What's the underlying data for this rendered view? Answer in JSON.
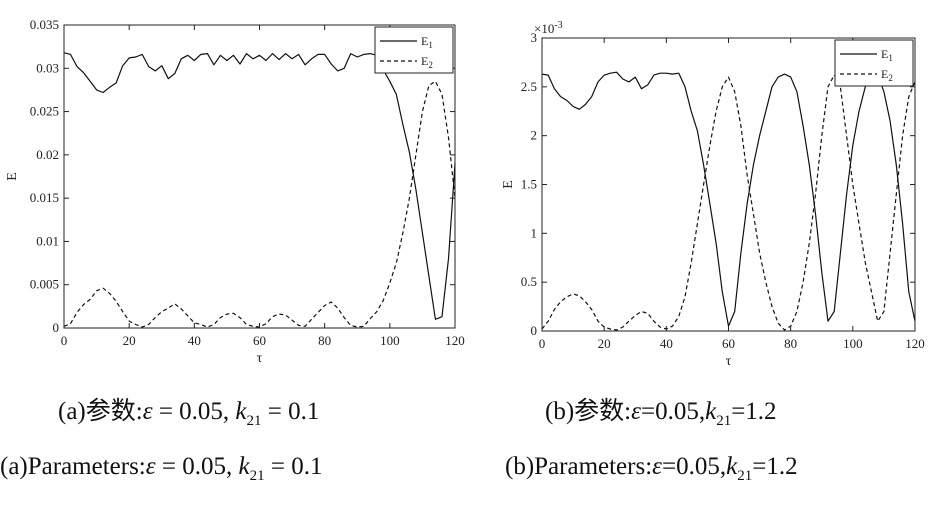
{
  "figure": {
    "captions": [
      {
        "label": "(a)参数:ε = 0.05, k21 = 0.1",
        "parts": [
          "(a)参数:",
          "ε",
          " = 0.05, ",
          "k",
          "21",
          " = 0.1"
        ]
      },
      {
        "label": "(b)参数:ε=0.05,k21=1.2",
        "parts": [
          "(b)参数:",
          "ε",
          "=0.05,",
          "k",
          "21",
          "=1.2"
        ]
      },
      {
        "label": "(a)Parameters:ε = 0.05, k21 = 0.1",
        "parts": [
          "(a)Parameters:",
          "ε",
          " = 0.05, ",
          "k",
          "21",
          " = 0.1"
        ]
      },
      {
        "label": "(b)Parameters:ε=0.05,k21=1.2",
        "parts": [
          "(b)Parameters:",
          "ε",
          "=0.05,",
          "k",
          "21",
          "=1.2"
        ]
      }
    ]
  },
  "chart_data": [
    {
      "type": "line",
      "title": "",
      "xlabel": "τ",
      "ylabel": "E",
      "xlim": [
        0,
        120
      ],
      "ylim": [
        0,
        0.035
      ],
      "x_ticks": [
        "0",
        "20",
        "40",
        "60",
        "80",
        "100",
        "120"
      ],
      "y_ticks": [
        "0",
        "0.005",
        "0.01",
        "0.015",
        "0.02",
        "0.025",
        "0.03",
        "0.035"
      ],
      "y_exponent_label": "",
      "grid": false,
      "legend": "top-right",
      "series": [
        {
          "name": "E1",
          "name_main": "E",
          "name_sub": "1",
          "style": "solid",
          "x": [
            0,
            2,
            4,
            6,
            8,
            10,
            12,
            14,
            16,
            18,
            20,
            22,
            24,
            26,
            28,
            30,
            32,
            34,
            36,
            38,
            40,
            42,
            44,
            46,
            48,
            50,
            52,
            54,
            56,
            58,
            60,
            62,
            64,
            66,
            68,
            70,
            72,
            74,
            76,
            78,
            80,
            82,
            84,
            86,
            88,
            90,
            92,
            94,
            96,
            98,
            100,
            102,
            104,
            106,
            108,
            110,
            112,
            114,
            116,
            118,
            120
          ],
          "values": [
            0.0318,
            0.0316,
            0.0302,
            0.0295,
            0.0285,
            0.0275,
            0.0272,
            0.0278,
            0.0283,
            0.0303,
            0.0312,
            0.0313,
            0.0316,
            0.0302,
            0.0297,
            0.0303,
            0.0288,
            0.0294,
            0.0311,
            0.0315,
            0.0309,
            0.0316,
            0.0317,
            0.0304,
            0.0315,
            0.0309,
            0.0315,
            0.0305,
            0.0317,
            0.0311,
            0.0315,
            0.0309,
            0.0317,
            0.031,
            0.0317,
            0.0311,
            0.0316,
            0.0304,
            0.0311,
            0.0316,
            0.0316,
            0.0305,
            0.0297,
            0.03,
            0.0317,
            0.0313,
            0.0316,
            0.0317,
            0.0315,
            0.0298,
            0.0285,
            0.027,
            0.0235,
            0.0203,
            0.016,
            0.011,
            0.006,
            0.001,
            0.0013,
            0.008,
            0.019
          ]
        },
        {
          "name": "E2",
          "name_main": "E",
          "name_sub": "2",
          "style": "dashed",
          "x": [
            0,
            2,
            4,
            6,
            8,
            10,
            12,
            14,
            16,
            18,
            20,
            22,
            24,
            26,
            28,
            30,
            32,
            34,
            36,
            38,
            40,
            42,
            44,
            46,
            48,
            50,
            52,
            54,
            56,
            58,
            60,
            62,
            64,
            66,
            68,
            70,
            72,
            74,
            76,
            78,
            80,
            82,
            84,
            86,
            88,
            90,
            92,
            94,
            96,
            98,
            100,
            102,
            104,
            106,
            108,
            110,
            112,
            114,
            116,
            118,
            120
          ],
          "values": [
            0.0002,
            0.0005,
            0.0018,
            0.0027,
            0.0033,
            0.0043,
            0.0046,
            0.004,
            0.0031,
            0.0019,
            0.0008,
            0.0004,
            0.0001,
            0.0004,
            0.0012,
            0.0019,
            0.0023,
            0.0028,
            0.0022,
            0.0014,
            0.0006,
            0.0004,
            0.0001,
            0.0004,
            0.0012,
            0.0016,
            0.0017,
            0.0012,
            0.0004,
            0.0002,
            0.0001,
            0.0005,
            0.0013,
            0.0016,
            0.0015,
            0.0009,
            0.0003,
            0.0002,
            0.001,
            0.0018,
            0.0026,
            0.003,
            0.0023,
            0.0012,
            0.0003,
            0.0001,
            0.0002,
            0.0011,
            0.0019,
            0.0032,
            0.0052,
            0.0075,
            0.011,
            0.015,
            0.02,
            0.025,
            0.028,
            0.0285,
            0.027,
            0.022,
            0.015
          ]
        }
      ]
    },
    {
      "type": "line",
      "title": "",
      "xlabel": "τ",
      "ylabel": "E",
      "xlim": [
        0,
        120
      ],
      "ylim": [
        0,
        0.003
      ],
      "x_ticks": [
        "0",
        "20",
        "40",
        "60",
        "80",
        "100",
        "120"
      ],
      "y_ticks": [
        "0",
        "0.5",
        "1",
        "1.5",
        "2",
        "2.5",
        "3"
      ],
      "y_exponent_label": "×10-3",
      "y_exponent_base": "×10",
      "y_exponent_power": "-3",
      "grid": false,
      "legend": "top-right",
      "series": [
        {
          "name": "E1",
          "name_main": "E",
          "name_sub": "1",
          "style": "solid",
          "x": [
            0,
            2,
            4,
            6,
            8,
            10,
            12,
            14,
            16,
            18,
            20,
            22,
            24,
            26,
            28,
            30,
            32,
            34,
            36,
            38,
            40,
            42,
            44,
            46,
            48,
            50,
            52,
            54,
            56,
            58,
            60,
            62,
            64,
            66,
            68,
            70,
            72,
            74,
            76,
            78,
            80,
            82,
            84,
            86,
            88,
            90,
            92,
            94,
            96,
            98,
            100,
            102,
            104,
            106,
            108,
            110,
            112,
            114,
            116,
            118,
            120
          ],
          "values": [
            0.00263,
            0.00262,
            0.00248,
            0.0024,
            0.00236,
            0.0023,
            0.00227,
            0.00232,
            0.0024,
            0.00255,
            0.00262,
            0.00264,
            0.00265,
            0.00258,
            0.00255,
            0.0026,
            0.00248,
            0.00252,
            0.00262,
            0.00264,
            0.00264,
            0.00263,
            0.00264,
            0.0025,
            0.00225,
            0.00205,
            0.0017,
            0.0013,
            0.0009,
            0.0004,
            5e-05,
            0.0002,
            0.0008,
            0.0013,
            0.0017,
            0.002,
            0.00225,
            0.0025,
            0.0026,
            0.00263,
            0.0026,
            0.00245,
            0.0021,
            0.0017,
            0.0012,
            0.0006,
            0.0001,
            0.0002,
            0.0008,
            0.0014,
            0.0019,
            0.00225,
            0.0025,
            0.00262,
            0.00262,
            0.00245,
            0.00215,
            0.0017,
            0.0011,
            0.0004,
            0.0001
          ]
        },
        {
          "name": "E2",
          "name_main": "E",
          "name_sub": "2",
          "style": "dashed",
          "x": [
            0,
            2,
            4,
            6,
            8,
            10,
            12,
            14,
            16,
            18,
            20,
            22,
            24,
            26,
            28,
            30,
            32,
            34,
            36,
            38,
            40,
            42,
            44,
            46,
            48,
            50,
            52,
            54,
            56,
            58,
            60,
            62,
            64,
            66,
            68,
            70,
            72,
            74,
            76,
            78,
            80,
            82,
            84,
            86,
            88,
            90,
            92,
            94,
            96,
            98,
            100,
            102,
            104,
            106,
            108,
            110,
            112,
            114,
            116,
            118,
            120
          ],
          "values": [
            2e-05,
            0.0001,
            0.00022,
            0.0003,
            0.00035,
            0.00038,
            0.00036,
            0.0003,
            0.00022,
            0.0001,
            4e-05,
            2e-05,
            1e-05,
            4e-05,
            0.0001,
            0.00016,
            0.0002,
            0.00018,
            0.0001,
            4e-05,
            2e-05,
            5e-05,
            0.00015,
            0.00035,
            0.0007,
            0.0011,
            0.0015,
            0.0019,
            0.00225,
            0.0025,
            0.0026,
            0.00245,
            0.0021,
            0.0016,
            0.0012,
            0.0008,
            0.0005,
            0.00025,
            8e-05,
            1e-05,
            5e-05,
            0.0002,
            0.0005,
            0.0009,
            0.0014,
            0.002,
            0.0025,
            0.00262,
            0.0025,
            0.002,
            0.0015,
            0.0011,
            0.0007,
            0.0004,
            0.0001,
            0.0002,
            0.0008,
            0.0014,
            0.002,
            0.0024,
            0.00255
          ]
        }
      ]
    }
  ]
}
